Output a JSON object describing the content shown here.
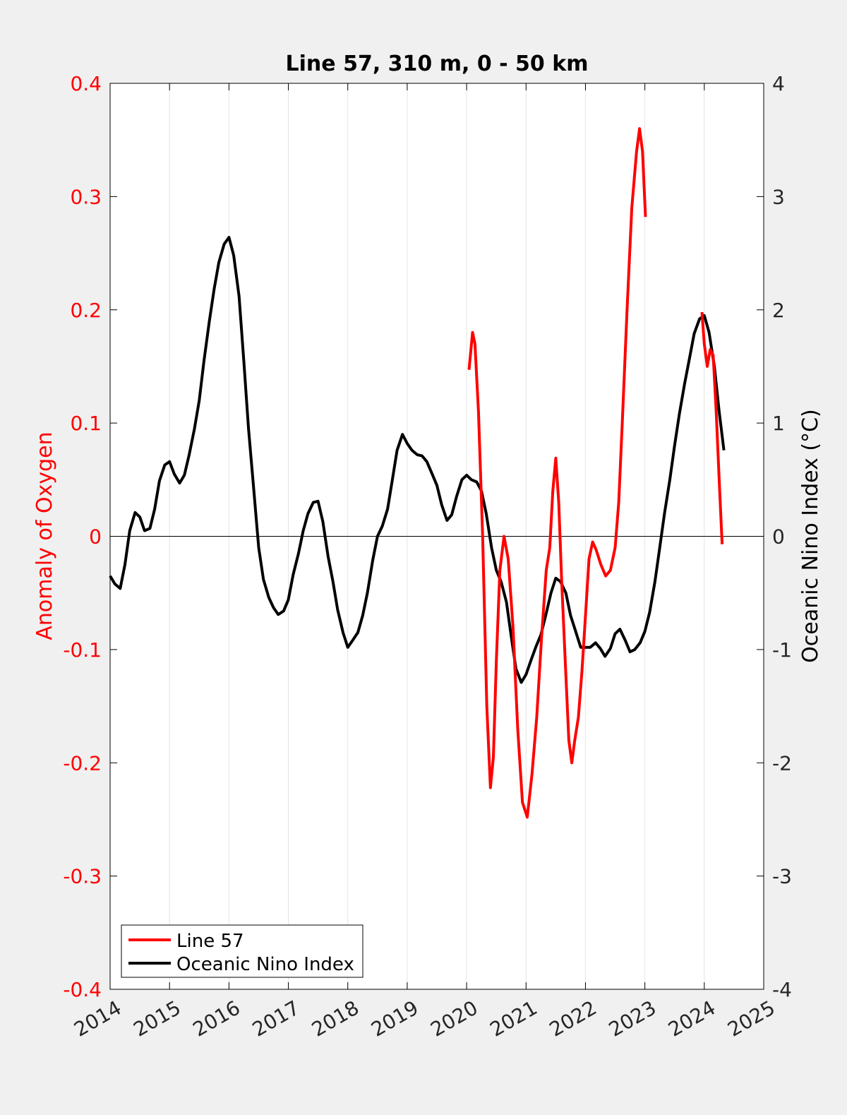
{
  "chart_data": {
    "type": "line",
    "title": "Line 57, 310 m, 0 - 50 km",
    "xlabel": "",
    "ylabel_left": "Anomaly of Oxygen",
    "ylabel_right": "Oceanic Nino Index (°C)",
    "xlim": [
      2014,
      2025
    ],
    "ylim_left": [
      -0.4,
      0.4
    ],
    "ylim_right": [
      -4,
      4
    ],
    "x_ticks": [
      "2014",
      "2015",
      "2016",
      "2017",
      "2018",
      "2019",
      "2020",
      "2021",
      "2022",
      "2023",
      "2024",
      "2025"
    ],
    "y_left_ticks": [
      "-0.4",
      "-0.3",
      "-0.2",
      "-0.1",
      "0",
      "0.1",
      "0.2",
      "0.3",
      "0.4"
    ],
    "y_right_ticks": [
      "-4",
      "-3",
      "-2",
      "-1",
      "0",
      "1",
      "2",
      "3",
      "4"
    ],
    "grid": "vertical",
    "legend_position": "bottom-left",
    "colors": {
      "line57": "#ff0000",
      "oni": "#000000",
      "left_axis": "#ff0000",
      "right_axis": "#000000"
    },
    "series": [
      {
        "name": "Line 57",
        "axis": "left",
        "segments": [
          [
            [
              2020.04,
              0.147
            ],
            [
              2020.1,
              0.18
            ],
            [
              2020.14,
              0.17
            ],
            [
              2020.2,
              0.11
            ],
            [
              2020.27,
              0.0
            ],
            [
              2020.34,
              -0.15
            ],
            [
              2020.4,
              -0.222
            ],
            [
              2020.45,
              -0.195
            ],
            [
              2020.5,
              -0.11
            ],
            [
              2020.56,
              -0.03
            ],
            [
              2020.63,
              0.0
            ],
            [
              2020.7,
              -0.02
            ],
            [
              2020.78,
              -0.08
            ],
            [
              2020.86,
              -0.17
            ],
            [
              2020.94,
              -0.235
            ],
            [
              2021.02,
              -0.248
            ],
            [
              2021.1,
              -0.21
            ],
            [
              2021.18,
              -0.16
            ],
            [
              2021.26,
              -0.09
            ],
            [
              2021.34,
              -0.03
            ],
            [
              2021.4,
              -0.01
            ],
            [
              2021.45,
              0.04
            ],
            [
              2021.5,
              0.069
            ],
            [
              2021.55,
              0.03
            ],
            [
              2021.6,
              -0.04
            ],
            [
              2021.66,
              -0.11
            ],
            [
              2021.72,
              -0.18
            ],
            [
              2021.77,
              -0.2
            ],
            [
              2021.82,
              -0.18
            ],
            [
              2021.88,
              -0.16
            ],
            [
              2021.94,
              -0.12
            ],
            [
              2022.0,
              -0.07
            ],
            [
              2022.06,
              -0.02
            ],
            [
              2022.12,
              -0.005
            ],
            [
              2022.18,
              -0.012
            ],
            [
              2022.26,
              -0.025
            ],
            [
              2022.34,
              -0.035
            ],
            [
              2022.42,
              -0.03
            ],
            [
              2022.5,
              -0.01
            ],
            [
              2022.56,
              0.03
            ],
            [
              2022.62,
              0.1
            ],
            [
              2022.7,
              0.2
            ],
            [
              2022.78,
              0.29
            ],
            [
              2022.86,
              0.34
            ],
            [
              2022.91,
              0.36
            ],
            [
              2022.96,
              0.34
            ],
            [
              2023.01,
              0.282
            ]
          ],
          [
            [
              2023.96,
              0.198
            ],
            [
              2024.0,
              0.17
            ],
            [
              2024.05,
              0.15
            ],
            [
              2024.1,
              0.165
            ],
            [
              2024.15,
              0.16
            ],
            [
              2024.2,
              0.11
            ],
            [
              2024.25,
              0.05
            ],
            [
              2024.3,
              -0.007
            ]
          ]
        ]
      },
      {
        "name": "Oceanic Nino Index",
        "axis": "right",
        "points": [
          [
            2014.0,
            -0.35
          ],
          [
            2014.08,
            -0.42
          ],
          [
            2014.17,
            -0.46
          ],
          [
            2014.25,
            -0.25
          ],
          [
            2014.33,
            0.05
          ],
          [
            2014.42,
            0.21
          ],
          [
            2014.5,
            0.17
          ],
          [
            2014.58,
            0.05
          ],
          [
            2014.67,
            0.07
          ],
          [
            2014.75,
            0.24
          ],
          [
            2014.83,
            0.49
          ],
          [
            2014.92,
            0.63
          ],
          [
            2015.0,
            0.66
          ],
          [
            2015.08,
            0.55
          ],
          [
            2015.17,
            0.47
          ],
          [
            2015.25,
            0.54
          ],
          [
            2015.33,
            0.72
          ],
          [
            2015.42,
            0.95
          ],
          [
            2015.5,
            1.2
          ],
          [
            2015.58,
            1.55
          ],
          [
            2015.67,
            1.9
          ],
          [
            2015.75,
            2.18
          ],
          [
            2015.83,
            2.42
          ],
          [
            2015.92,
            2.58
          ],
          [
            2016.0,
            2.64
          ],
          [
            2016.08,
            2.48
          ],
          [
            2016.17,
            2.12
          ],
          [
            2016.25,
            1.55
          ],
          [
            2016.33,
            0.95
          ],
          [
            2016.42,
            0.4
          ],
          [
            2016.5,
            -0.1
          ],
          [
            2016.58,
            -0.38
          ],
          [
            2016.67,
            -0.54
          ],
          [
            2016.75,
            -0.63
          ],
          [
            2016.83,
            -0.69
          ],
          [
            2016.92,
            -0.66
          ],
          [
            2017.0,
            -0.56
          ],
          [
            2017.08,
            -0.34
          ],
          [
            2017.17,
            -0.15
          ],
          [
            2017.25,
            0.05
          ],
          [
            2017.33,
            0.2
          ],
          [
            2017.42,
            0.3
          ],
          [
            2017.5,
            0.31
          ],
          [
            2017.58,
            0.13
          ],
          [
            2017.67,
            -0.18
          ],
          [
            2017.75,
            -0.4
          ],
          [
            2017.83,
            -0.65
          ],
          [
            2017.92,
            -0.85
          ],
          [
            2018.0,
            -0.98
          ],
          [
            2018.08,
            -0.92
          ],
          [
            2018.17,
            -0.85
          ],
          [
            2018.25,
            -0.7
          ],
          [
            2018.33,
            -0.5
          ],
          [
            2018.42,
            -0.21
          ],
          [
            2018.5,
            0.0
          ],
          [
            2018.58,
            0.09
          ],
          [
            2018.67,
            0.24
          ],
          [
            2018.75,
            0.5
          ],
          [
            2018.83,
            0.76
          ],
          [
            2018.92,
            0.9
          ],
          [
            2019.0,
            0.82
          ],
          [
            2019.08,
            0.76
          ],
          [
            2019.17,
            0.72
          ],
          [
            2019.25,
            0.71
          ],
          [
            2019.33,
            0.66
          ],
          [
            2019.42,
            0.55
          ],
          [
            2019.5,
            0.45
          ],
          [
            2019.58,
            0.28
          ],
          [
            2019.67,
            0.14
          ],
          [
            2019.75,
            0.19
          ],
          [
            2019.83,
            0.35
          ],
          [
            2019.92,
            0.5
          ],
          [
            2020.0,
            0.54
          ],
          [
            2020.08,
            0.5
          ],
          [
            2020.17,
            0.48
          ],
          [
            2020.25,
            0.4
          ],
          [
            2020.33,
            0.2
          ],
          [
            2020.42,
            -0.1
          ],
          [
            2020.5,
            -0.3
          ],
          [
            2020.58,
            -0.4
          ],
          [
            2020.67,
            -0.58
          ],
          [
            2020.75,
            -0.88
          ],
          [
            2020.83,
            -1.17
          ],
          [
            2020.92,
            -1.29
          ],
          [
            2021.0,
            -1.22
          ],
          [
            2021.08,
            -1.1
          ],
          [
            2021.17,
            -0.97
          ],
          [
            2021.25,
            -0.87
          ],
          [
            2021.33,
            -0.7
          ],
          [
            2021.42,
            -0.5
          ],
          [
            2021.5,
            -0.37
          ],
          [
            2021.58,
            -0.4
          ],
          [
            2021.67,
            -0.5
          ],
          [
            2021.75,
            -0.7
          ],
          [
            2021.83,
            -0.83
          ],
          [
            2021.92,
            -0.98
          ],
          [
            2022.0,
            -0.98
          ],
          [
            2022.08,
            -0.98
          ],
          [
            2022.17,
            -0.94
          ],
          [
            2022.25,
            -0.99
          ],
          [
            2022.33,
            -1.06
          ],
          [
            2022.42,
            -0.99
          ],
          [
            2022.5,
            -0.86
          ],
          [
            2022.58,
            -0.82
          ],
          [
            2022.67,
            -0.92
          ],
          [
            2022.75,
            -1.02
          ],
          [
            2022.83,
            -1.0
          ],
          [
            2022.92,
            -0.94
          ],
          [
            2023.0,
            -0.84
          ],
          [
            2023.08,
            -0.67
          ],
          [
            2023.17,
            -0.4
          ],
          [
            2023.25,
            -0.1
          ],
          [
            2023.33,
            0.2
          ],
          [
            2023.42,
            0.5
          ],
          [
            2023.5,
            0.8
          ],
          [
            2023.58,
            1.08
          ],
          [
            2023.67,
            1.35
          ],
          [
            2023.75,
            1.57
          ],
          [
            2023.83,
            1.79
          ],
          [
            2023.92,
            1.92
          ],
          [
            2024.0,
            1.95
          ],
          [
            2024.08,
            1.8
          ],
          [
            2024.17,
            1.5
          ],
          [
            2024.25,
            1.1
          ],
          [
            2024.33,
            0.76
          ]
        ]
      }
    ]
  }
}
